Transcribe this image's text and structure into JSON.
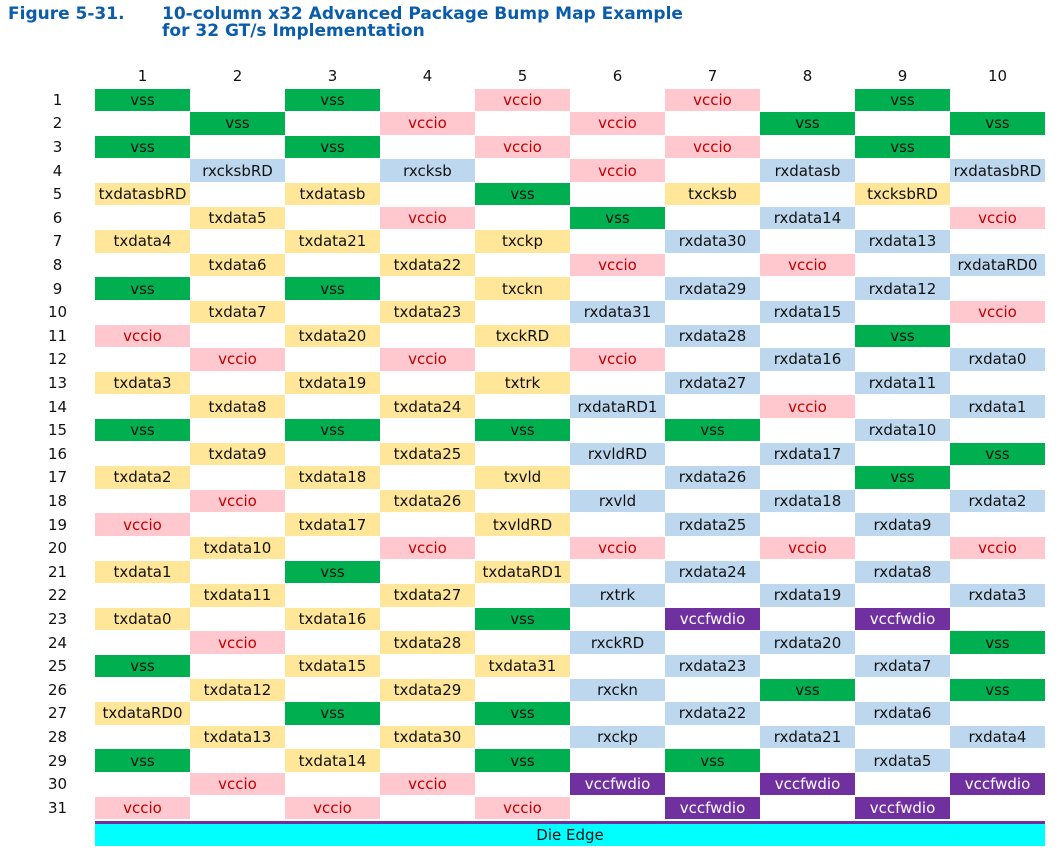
{
  "figure": {
    "number": "Figure 5-31.",
    "title_lines": [
      "10-column x32 Advanced Package Bump Map Example",
      "for 32 GT/s Implementation"
    ]
  },
  "columns": [
    "1",
    "2",
    "3",
    "4",
    "5",
    "6",
    "7",
    "8",
    "9",
    "10"
  ],
  "rows": [
    {
      "label": "1",
      "cells": [
        {
          "label": "vss",
          "fill": "#00b050",
          "ink": "#111"
        },
        {
          "label": "vss",
          "fill": "#00b050",
          "ink": "#111"
        },
        {
          "label": "vccio",
          "fill": "#ffc7ce",
          "ink": "#c00000"
        },
        {
          "label": "vccio",
          "fill": "#ffc7ce",
          "ink": "#c00000"
        },
        {
          "label": "vss",
          "fill": "#00b050",
          "ink": "#111"
        }
      ]
    },
    {
      "label": "2",
      "cells": [
        {
          "label": "vss",
          "fill": "#00b050",
          "ink": "#111"
        },
        {
          "label": "vccio",
          "fill": "#ffc7ce",
          "ink": "#c00000"
        },
        {
          "label": "vccio",
          "fill": "#ffc7ce",
          "ink": "#c00000"
        },
        {
          "label": "vss",
          "fill": "#00b050",
          "ink": "#111"
        },
        {
          "label": "vss",
          "fill": "#00b050",
          "ink": "#111"
        }
      ]
    },
    {
      "label": "3",
      "cells": [
        {
          "label": "vss",
          "fill": "#00b050",
          "ink": "#111"
        },
        {
          "label": "vss",
          "fill": "#00b050",
          "ink": "#111"
        },
        {
          "label": "vccio",
          "fill": "#ffc7ce",
          "ink": "#c00000"
        },
        {
          "label": "vccio",
          "fill": "#ffc7ce",
          "ink": "#c00000"
        },
        {
          "label": "vss",
          "fill": "#00b050",
          "ink": "#111"
        }
      ]
    },
    {
      "label": "4",
      "cells": [
        {
          "label": "rxcksbRD",
          "fill": "#bdd7ee",
          "ink": "#111"
        },
        {
          "label": "rxcksb",
          "fill": "#bdd7ee",
          "ink": "#111"
        },
        {
          "label": "vccio",
          "fill": "#ffc7ce",
          "ink": "#c00000"
        },
        {
          "label": "rxdatasb",
          "fill": "#bdd7ee",
          "ink": "#111"
        },
        {
          "label": "rxdatasbRD",
          "fill": "#bdd7ee",
          "ink": "#111"
        }
      ]
    },
    {
      "label": "5",
      "cells": [
        {
          "label": "txdatasbRD",
          "fill": "#ffe699",
          "ink": "#111"
        },
        {
          "label": "txdatasb",
          "fill": "#ffe699",
          "ink": "#111"
        },
        {
          "label": "vss",
          "fill": "#00b050",
          "ink": "#111"
        },
        {
          "label": "txcksb",
          "fill": "#ffe699",
          "ink": "#111"
        },
        {
          "label": "txcksbRD",
          "fill": "#ffe699",
          "ink": "#111"
        }
      ]
    },
    {
      "label": "6",
      "cells": [
        {
          "label": "txdata5",
          "fill": "#ffe699",
          "ink": "#111"
        },
        {
          "label": "vccio",
          "fill": "#ffc7ce",
          "ink": "#c00000"
        },
        {
          "label": "vss",
          "fill": "#00b050",
          "ink": "#111"
        },
        {
          "label": "rxdata14",
          "fill": "#bdd7ee",
          "ink": "#111"
        },
        {
          "label": "vccio",
          "fill": "#ffc7ce",
          "ink": "#c00000"
        }
      ]
    },
    {
      "label": "7",
      "cells": [
        {
          "label": "txdata4",
          "fill": "#ffe699",
          "ink": "#111"
        },
        {
          "label": "txdata21",
          "fill": "#ffe699",
          "ink": "#111"
        },
        {
          "label": "txckp",
          "fill": "#ffe699",
          "ink": "#111"
        },
        {
          "label": "rxdata30",
          "fill": "#bdd7ee",
          "ink": "#111"
        },
        {
          "label": "rxdata13",
          "fill": "#bdd7ee",
          "ink": "#111"
        }
      ]
    },
    {
      "label": "8",
      "cells": [
        {
          "label": "txdata6",
          "fill": "#ffe699",
          "ink": "#111"
        },
        {
          "label": "txdata22",
          "fill": "#ffe699",
          "ink": "#111"
        },
        {
          "label": "vccio",
          "fill": "#ffc7ce",
          "ink": "#c00000"
        },
        {
          "label": "vccio",
          "fill": "#ffc7ce",
          "ink": "#c00000"
        },
        {
          "label": "rxdataRD0",
          "fill": "#bdd7ee",
          "ink": "#111"
        }
      ]
    },
    {
      "label": "9",
      "cells": [
        {
          "label": "vss",
          "fill": "#00b050",
          "ink": "#111"
        },
        {
          "label": "vss",
          "fill": "#00b050",
          "ink": "#111"
        },
        {
          "label": "txckn",
          "fill": "#ffe699",
          "ink": "#111"
        },
        {
          "label": "rxdata29",
          "fill": "#bdd7ee",
          "ink": "#111"
        },
        {
          "label": "rxdata12",
          "fill": "#bdd7ee",
          "ink": "#111"
        }
      ]
    },
    {
      "label": "10",
      "cells": [
        {
          "label": "txdata7",
          "fill": "#ffe699",
          "ink": "#111"
        },
        {
          "label": "txdata23",
          "fill": "#ffe699",
          "ink": "#111"
        },
        {
          "label": "rxdata31",
          "fill": "#bdd7ee",
          "ink": "#111"
        },
        {
          "label": "rxdata15",
          "fill": "#bdd7ee",
          "ink": "#111"
        },
        {
          "label": "vccio",
          "fill": "#ffc7ce",
          "ink": "#c00000"
        }
      ]
    },
    {
      "label": "11",
      "cells": [
        {
          "label": "vccio",
          "fill": "#ffc7ce",
          "ink": "#c00000"
        },
        {
          "label": "txdata20",
          "fill": "#ffe699",
          "ink": "#111"
        },
        {
          "label": "txckRD",
          "fill": "#ffe699",
          "ink": "#111"
        },
        {
          "label": "rxdata28",
          "fill": "#bdd7ee",
          "ink": "#111"
        },
        {
          "label": "vss",
          "fill": "#00b050",
          "ink": "#111"
        }
      ]
    },
    {
      "label": "12",
      "cells": [
        {
          "label": "vccio",
          "fill": "#ffc7ce",
          "ink": "#c00000"
        },
        {
          "label": "vccio",
          "fill": "#ffc7ce",
          "ink": "#c00000"
        },
        {
          "label": "vccio",
          "fill": "#ffc7ce",
          "ink": "#c00000"
        },
        {
          "label": "rxdata16",
          "fill": "#bdd7ee",
          "ink": "#111"
        },
        {
          "label": "rxdata0",
          "fill": "#bdd7ee",
          "ink": "#111"
        }
      ]
    },
    {
      "label": "13",
      "cells": [
        {
          "label": "txdata3",
          "fill": "#ffe699",
          "ink": "#111"
        },
        {
          "label": "txdata19",
          "fill": "#ffe699",
          "ink": "#111"
        },
        {
          "label": "txtrk",
          "fill": "#ffe699",
          "ink": "#111"
        },
        {
          "label": "rxdata27",
          "fill": "#bdd7ee",
          "ink": "#111"
        },
        {
          "label": "rxdata11",
          "fill": "#bdd7ee",
          "ink": "#111"
        }
      ]
    },
    {
      "label": "14",
      "cells": [
        {
          "label": "txdata8",
          "fill": "#ffe699",
          "ink": "#111"
        },
        {
          "label": "txdata24",
          "fill": "#ffe699",
          "ink": "#111"
        },
        {
          "label": "rxdataRD1",
          "fill": "#bdd7ee",
          "ink": "#111"
        },
        {
          "label": "vccio",
          "fill": "#ffc7ce",
          "ink": "#c00000"
        },
        {
          "label": "rxdata1",
          "fill": "#bdd7ee",
          "ink": "#111"
        }
      ]
    },
    {
      "label": "15",
      "cells": [
        {
          "label": "vss",
          "fill": "#00b050",
          "ink": "#111"
        },
        {
          "label": "vss",
          "fill": "#00b050",
          "ink": "#111"
        },
        {
          "label": "vss",
          "fill": "#00b050",
          "ink": "#111"
        },
        {
          "label": "vss",
          "fill": "#00b050",
          "ink": "#111"
        },
        {
          "label": "rxdata10",
          "fill": "#bdd7ee",
          "ink": "#111"
        }
      ]
    },
    {
      "label": "16",
      "cells": [
        {
          "label": "txdata9",
          "fill": "#ffe699",
          "ink": "#111"
        },
        {
          "label": "txdata25",
          "fill": "#ffe699",
          "ink": "#111"
        },
        {
          "label": "rxvldRD",
          "fill": "#bdd7ee",
          "ink": "#111"
        },
        {
          "label": "rxdata17",
          "fill": "#bdd7ee",
          "ink": "#111"
        },
        {
          "label": "vss",
          "fill": "#00b050",
          "ink": "#111"
        }
      ]
    },
    {
      "label": "17",
      "cells": [
        {
          "label": "txdata2",
          "fill": "#ffe699",
          "ink": "#111"
        },
        {
          "label": "txdata18",
          "fill": "#ffe699",
          "ink": "#111"
        },
        {
          "label": "txvld",
          "fill": "#ffe699",
          "ink": "#111"
        },
        {
          "label": "rxdata26",
          "fill": "#bdd7ee",
          "ink": "#111"
        },
        {
          "label": "vss",
          "fill": "#00b050",
          "ink": "#111"
        }
      ]
    },
    {
      "label": "18",
      "cells": [
        {
          "label": "vccio",
          "fill": "#ffc7ce",
          "ink": "#c00000"
        },
        {
          "label": "txdata26",
          "fill": "#ffe699",
          "ink": "#111"
        },
        {
          "label": "rxvld",
          "fill": "#bdd7ee",
          "ink": "#111"
        },
        {
          "label": "rxdata18",
          "fill": "#bdd7ee",
          "ink": "#111"
        },
        {
          "label": "rxdata2",
          "fill": "#bdd7ee",
          "ink": "#111"
        }
      ]
    },
    {
      "label": "19",
      "cells": [
        {
          "label": "vccio",
          "fill": "#ffc7ce",
          "ink": "#c00000"
        },
        {
          "label": "txdata17",
          "fill": "#ffe699",
          "ink": "#111"
        },
        {
          "label": "txvldRD",
          "fill": "#ffe699",
          "ink": "#111"
        },
        {
          "label": "rxdata25",
          "fill": "#bdd7ee",
          "ink": "#111"
        },
        {
          "label": "rxdata9",
          "fill": "#bdd7ee",
          "ink": "#111"
        }
      ]
    },
    {
      "label": "20",
      "cells": [
        {
          "label": "txdata10",
          "fill": "#ffe699",
          "ink": "#111"
        },
        {
          "label": "vccio",
          "fill": "#ffc7ce",
          "ink": "#c00000"
        },
        {
          "label": "vccio",
          "fill": "#ffc7ce",
          "ink": "#c00000"
        },
        {
          "label": "vccio",
          "fill": "#ffc7ce",
          "ink": "#c00000"
        },
        {
          "label": "vccio",
          "fill": "#ffc7ce",
          "ink": "#c00000"
        }
      ]
    },
    {
      "label": "21",
      "cells": [
        {
          "label": "txdata1",
          "fill": "#ffe699",
          "ink": "#111"
        },
        {
          "label": "vss",
          "fill": "#00b050",
          "ink": "#111"
        },
        {
          "label": "txdataRD1",
          "fill": "#ffe699",
          "ink": "#111"
        },
        {
          "label": "rxdata24",
          "fill": "#bdd7ee",
          "ink": "#111"
        },
        {
          "label": "rxdata8",
          "fill": "#bdd7ee",
          "ink": "#111"
        }
      ]
    },
    {
      "label": "22",
      "cells": [
        {
          "label": "txdata11",
          "fill": "#ffe699",
          "ink": "#111"
        },
        {
          "label": "txdata27",
          "fill": "#ffe699",
          "ink": "#111"
        },
        {
          "label": "rxtrk",
          "fill": "#bdd7ee",
          "ink": "#111"
        },
        {
          "label": "rxdata19",
          "fill": "#bdd7ee",
          "ink": "#111"
        },
        {
          "label": "rxdata3",
          "fill": "#bdd7ee",
          "ink": "#111"
        }
      ]
    },
    {
      "label": "23",
      "cells": [
        {
          "label": "txdata0",
          "fill": "#ffe699",
          "ink": "#111"
        },
        {
          "label": "txdata16",
          "fill": "#ffe699",
          "ink": "#111"
        },
        {
          "label": "vss",
          "fill": "#00b050",
          "ink": "#111"
        },
        {
          "label": "vccfwdio",
          "fill": "#7030a0",
          "ink": "#fff"
        },
        {
          "label": "vccfwdio",
          "fill": "#7030a0",
          "ink": "#fff"
        }
      ]
    },
    {
      "label": "24",
      "cells": [
        {
          "label": "vccio",
          "fill": "#ffc7ce",
          "ink": "#c00000"
        },
        {
          "label": "txdata28",
          "fill": "#ffe699",
          "ink": "#111"
        },
        {
          "label": "rxckRD",
          "fill": "#bdd7ee",
          "ink": "#111"
        },
        {
          "label": "rxdata20",
          "fill": "#bdd7ee",
          "ink": "#111"
        },
        {
          "label": "vss",
          "fill": "#00b050",
          "ink": "#111"
        }
      ]
    },
    {
      "label": "25",
      "cells": [
        {
          "label": "vss",
          "fill": "#00b050",
          "ink": "#111"
        },
        {
          "label": "txdata15",
          "fill": "#ffe699",
          "ink": "#111"
        },
        {
          "label": "txdata31",
          "fill": "#ffe699",
          "ink": "#111"
        },
        {
          "label": "rxdata23",
          "fill": "#bdd7ee",
          "ink": "#111"
        },
        {
          "label": "rxdata7",
          "fill": "#bdd7ee",
          "ink": "#111"
        }
      ]
    },
    {
      "label": "26",
      "cells": [
        {
          "label": "txdata12",
          "fill": "#ffe699",
          "ink": "#111"
        },
        {
          "label": "txdata29",
          "fill": "#ffe699",
          "ink": "#111"
        },
        {
          "label": "rxckn",
          "fill": "#bdd7ee",
          "ink": "#111"
        },
        {
          "label": "vss",
          "fill": "#00b050",
          "ink": "#111"
        },
        {
          "label": "vss",
          "fill": "#00b050",
          "ink": "#111"
        }
      ]
    },
    {
      "label": "27",
      "cells": [
        {
          "label": "txdataRD0",
          "fill": "#ffe699",
          "ink": "#111"
        },
        {
          "label": "vss",
          "fill": "#00b050",
          "ink": "#111"
        },
        {
          "label": "vss",
          "fill": "#00b050",
          "ink": "#111"
        },
        {
          "label": "rxdata22",
          "fill": "#bdd7ee",
          "ink": "#111"
        },
        {
          "label": "rxdata6",
          "fill": "#bdd7ee",
          "ink": "#111"
        }
      ]
    },
    {
      "label": "28",
      "cells": [
        {
          "label": "txdata13",
          "fill": "#ffe699",
          "ink": "#111"
        },
        {
          "label": "txdata30",
          "fill": "#ffe699",
          "ink": "#111"
        },
        {
          "label": "rxckp",
          "fill": "#bdd7ee",
          "ink": "#111"
        },
        {
          "label": "rxdata21",
          "fill": "#bdd7ee",
          "ink": "#111"
        },
        {
          "label": "rxdata4",
          "fill": "#bdd7ee",
          "ink": "#111"
        }
      ]
    },
    {
      "label": "29",
      "cells": [
        {
          "label": "vss",
          "fill": "#00b050",
          "ink": "#111"
        },
        {
          "label": "txdata14",
          "fill": "#ffe699",
          "ink": "#111"
        },
        {
          "label": "vss",
          "fill": "#00b050",
          "ink": "#111"
        },
        {
          "label": "vss",
          "fill": "#00b050",
          "ink": "#111"
        },
        {
          "label": "rxdata5",
          "fill": "#bdd7ee",
          "ink": "#111"
        }
      ]
    },
    {
      "label": "30",
      "cells": [
        {
          "label": "vccio",
          "fill": "#ffc7ce",
          "ink": "#c00000"
        },
        {
          "label": "vccio",
          "fill": "#ffc7ce",
          "ink": "#c00000"
        },
        {
          "label": "vccfwdio",
          "fill": "#7030a0",
          "ink": "#fff"
        },
        {
          "label": "vccfwdio",
          "fill": "#7030a0",
          "ink": "#fff"
        },
        {
          "label": "vccfwdio",
          "fill": "#7030a0",
          "ink": "#fff"
        }
      ]
    },
    {
      "label": "31",
      "cells": [
        {
          "label": "vccio",
          "fill": "#ffc7ce",
          "ink": "#c00000"
        },
        {
          "label": "vccio",
          "fill": "#ffc7ce",
          "ink": "#c00000"
        },
        {
          "label": "vccio",
          "fill": "#ffc7ce",
          "ink": "#c00000"
        },
        {
          "label": "vccfwdio",
          "fill": "#7030a0",
          "ink": "#fff"
        },
        {
          "label": "vccfwdio",
          "fill": "#7030a0",
          "ink": "#fff"
        }
      ]
    }
  ],
  "die_edge": "Die Edge"
}
